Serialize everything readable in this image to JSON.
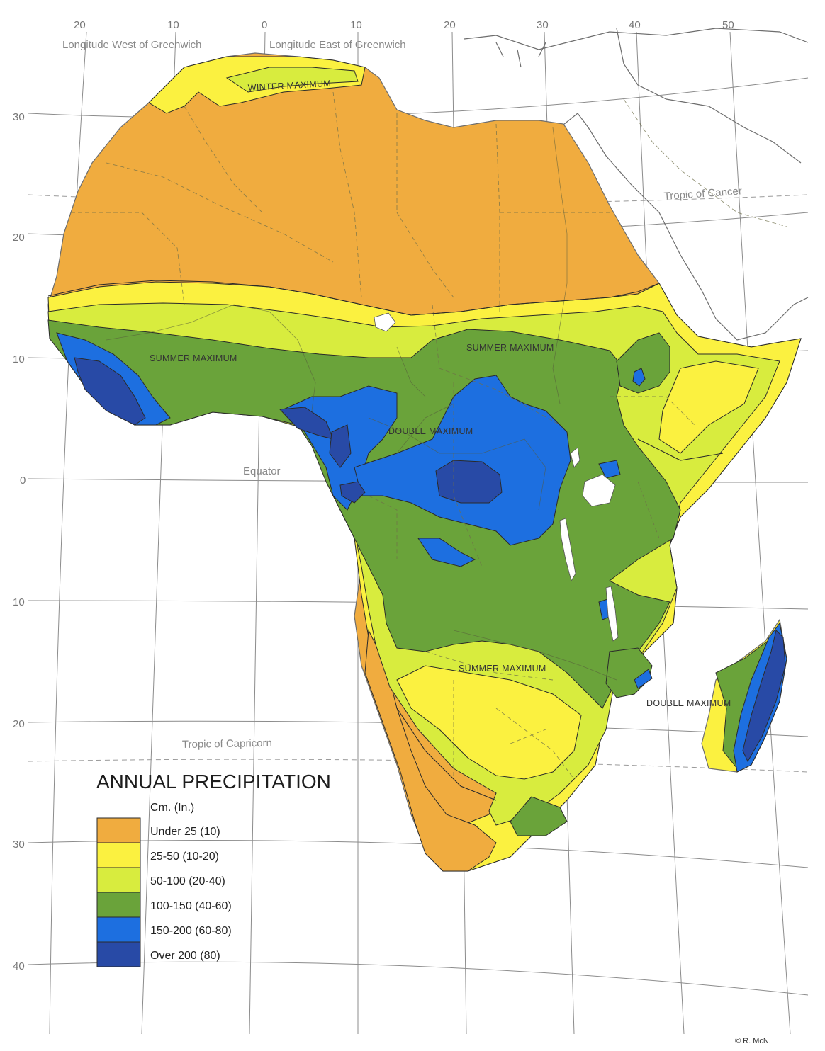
{
  "map": {
    "title": "ANNUAL PRECIPITATION",
    "unit_label": "Cm. (In.)",
    "credit": "© R. McN.",
    "longitude_west_label": "Longitude West of Greenwich",
    "longitude_east_label": "Longitude East of Greenwich",
    "top_longitudes": [
      "20",
      "10",
      "0",
      "10",
      "20",
      "30",
      "40",
      "50"
    ],
    "left_latitudes": [
      "30",
      "20",
      "10",
      "0",
      "10",
      "20",
      "30",
      "40"
    ],
    "reference_lines": {
      "tropic_cancer": "Tropic of Cancer",
      "equator": "Equator",
      "tropic_capricorn": "Tropic of Capricorn"
    },
    "regions": {
      "winter_maximum": "WINTER MAXIMUM",
      "summer_maximum_west": "SUMMER MAXIMUM",
      "summer_maximum_central": "SUMMER MAXIMUM",
      "double_maximum_congo": "DOUBLE MAXIMUM",
      "summer_maximum_south": "SUMMER MAXIMUM",
      "double_maximum_madagascar": "DOUBLE MAXIMUM"
    },
    "legend": [
      {
        "label": "Under 25 (10)",
        "color": "#f0ac3f"
      },
      {
        "label": "25-50 (10-20)",
        "color": "#fbf140"
      },
      {
        "label": "50-100 (20-40)",
        "color": "#d8ec3e"
      },
      {
        "label": "100-150 (40-60)",
        "color": "#6aa33a"
      },
      {
        "label": "150-200 (60-80)",
        "color": "#1d6fe0"
      },
      {
        "label": "Over 200 (80)",
        "color": "#284aa6"
      }
    ]
  }
}
